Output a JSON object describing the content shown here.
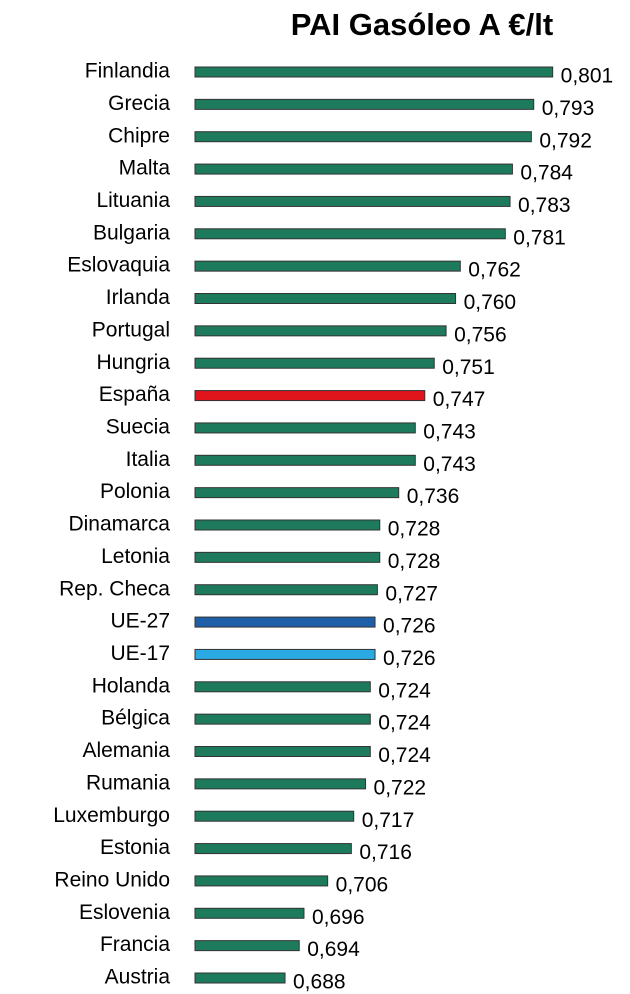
{
  "chart_data": {
    "type": "bar",
    "orientation": "horizontal",
    "title": "PAI Gasóleo A €/lt",
    "categories": [
      "Finlandia",
      "Grecia",
      "Chipre",
      "Malta",
      "Lituania",
      "Bulgaria",
      "Eslovaquia",
      "Irlanda",
      "Portugal",
      "Hungria",
      "España",
      "Suecia",
      "Italia",
      "Polonia",
      "Dinamarca",
      "Letonia",
      "Rep. Checa",
      "UE-27",
      "UE-17",
      "Holanda",
      "Bélgica",
      "Alemania",
      "Rumania",
      "Luxemburgo",
      "Estonia",
      "Reino Unido",
      "Eslovenia",
      "Francia",
      "Austria"
    ],
    "values": [
      0.801,
      0.793,
      0.792,
      0.784,
      0.783,
      0.781,
      0.762,
      0.76,
      0.756,
      0.751,
      0.747,
      0.743,
      0.743,
      0.736,
      0.728,
      0.728,
      0.727,
      0.726,
      0.726,
      0.724,
      0.724,
      0.724,
      0.722,
      0.717,
      0.716,
      0.706,
      0.696,
      0.694,
      0.688
    ],
    "value_labels": [
      "0,801",
      "0,793",
      "0,792",
      "0,784",
      "0,783",
      "0,781",
      "0,762",
      "0,760",
      "0,756",
      "0,751",
      "0,747",
      "0,743",
      "0,743",
      "0,736",
      "0,728",
      "0,728",
      "0,727",
      "0,726",
      "0,726",
      "0,724",
      "0,724",
      "0,724",
      "0,722",
      "0,717",
      "0,716",
      "0,706",
      "0,696",
      "0,694",
      "0,688"
    ],
    "colors": [
      "#1e7a5c",
      "#1e7a5c",
      "#1e7a5c",
      "#1e7a5c",
      "#1e7a5c",
      "#1e7a5c",
      "#1e7a5c",
      "#1e7a5c",
      "#1e7a5c",
      "#1e7a5c",
      "#e0141b",
      "#1e7a5c",
      "#1e7a5c",
      "#1e7a5c",
      "#1e7a5c",
      "#1e7a5c",
      "#1e7a5c",
      "#1f5fa8",
      "#2aaae2",
      "#1e7a5c",
      "#1e7a5c",
      "#1e7a5c",
      "#1e7a5c",
      "#1e7a5c",
      "#1e7a5c",
      "#1e7a5c",
      "#1e7a5c",
      "#1e7a5c",
      "#1e7a5c"
    ],
    "xlim": [
      0.65,
      0.81
    ]
  }
}
